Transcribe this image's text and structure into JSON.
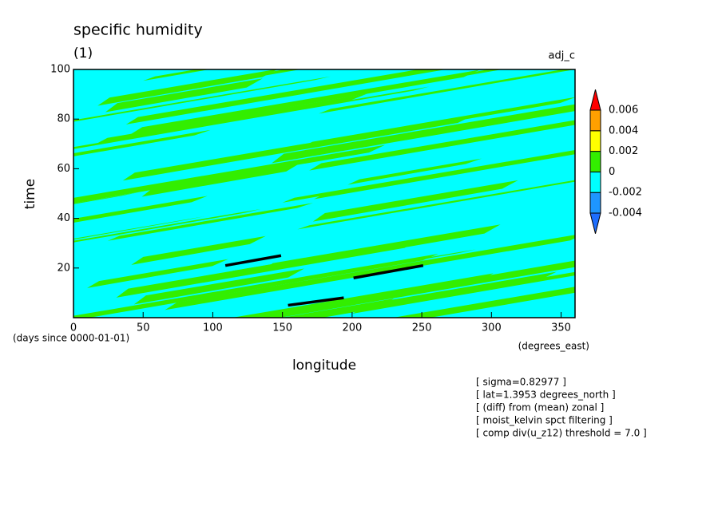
{
  "chart_data": {
    "type": "contour",
    "title": "specific humidity",
    "subtitle": "(1)",
    "label_right": "adj_c",
    "ylabel": "time",
    "xlabel": "longitude",
    "y_units": "(days since 0000-01-01)",
    "x_units": "(degrees_east)",
    "xlim": [
      0,
      360
    ],
    "xticks": [
      0,
      50,
      100,
      150,
      200,
      250,
      300,
      350
    ],
    "ylim": [
      0,
      100
    ],
    "yticks": [
      20,
      40,
      60,
      80,
      100
    ],
    "series": [
      {
        "x": [
          109,
          149
        ],
        "values": [
          21,
          25
        ],
        "color": "#000000"
      },
      {
        "x": [
          201,
          251
        ],
        "values": [
          16,
          21
        ],
        "color": "#000000"
      },
      {
        "x": [
          154,
          194
        ],
        "values": [
          5,
          8
        ],
        "color": "#000000"
      }
    ],
    "colorbar": {
      "ticks": [
        -0.004,
        -0.002,
        0,
        0.002,
        0.004,
        0.006
      ],
      "colors": [
        "#1e6eff",
        "#1e96ff",
        "#00ffff",
        "#33ee00",
        "#ffff00",
        "#ffa000",
        "#ff0000"
      ]
    },
    "annotations": [
      "[ sigma=0.82977 ]",
      "[ lat=1.3953 degrees_north ]",
      "[ (diff) from (mean) zonal ]",
      "[ moist_kelvin spct filtering ]",
      "[ comp div(u_z12) threshold = 7.0 ]"
    ]
  }
}
